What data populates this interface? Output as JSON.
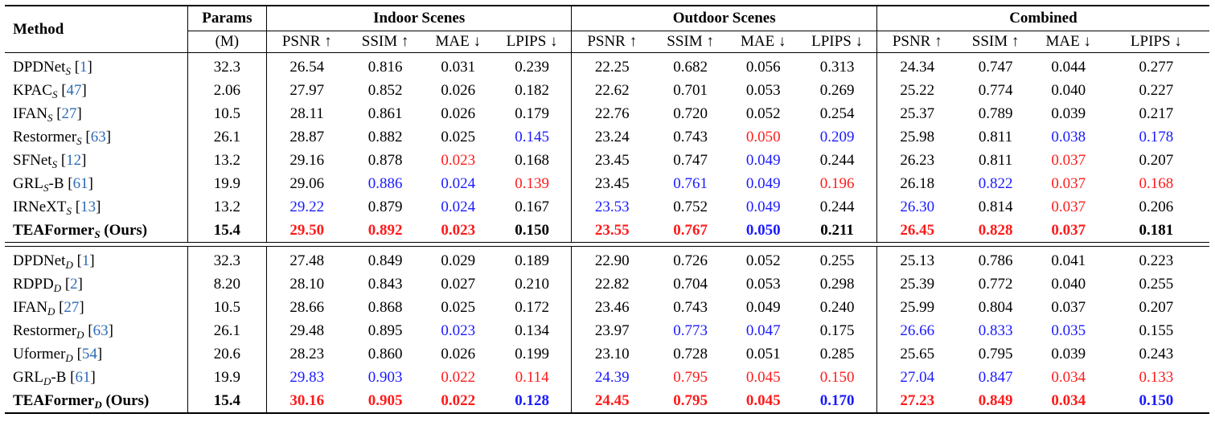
{
  "headers": {
    "method": "Method",
    "params": "Params",
    "params_unit": "(M)",
    "groups": [
      "Indoor Scenes",
      "Outdoor Scenes",
      "Combined"
    ],
    "metrics": [
      "PSNR ↑",
      "SSIM ↑",
      "MAE ↓",
      "LPIPS ↓"
    ]
  },
  "colors": {
    "best": "#ff1a1a",
    "second": "#1a1aff",
    "ref": "#2e6bb6"
  },
  "blocks": [
    [
      {
        "name": "DPDNet",
        "sub": "S",
        "suffix": "",
        "ref": "1",
        "ours": false,
        "params": "32.3",
        "values": [
          "26.54",
          "0.816",
          "0.031",
          "0.239",
          "22.25",
          "0.682",
          "0.056",
          "0.313",
          "24.34",
          "0.747",
          "0.044",
          "0.277"
        ],
        "marks": [
          "",
          "",
          "",
          "",
          "",
          "",
          "",
          "",
          "",
          "",
          "",
          ""
        ]
      },
      {
        "name": "KPAC",
        "sub": "S",
        "suffix": "",
        "ref": "47",
        "ours": false,
        "params": "2.06",
        "values": [
          "27.97",
          "0.852",
          "0.026",
          "0.182",
          "22.62",
          "0.701",
          "0.053",
          "0.269",
          "25.22",
          "0.774",
          "0.040",
          "0.227"
        ],
        "marks": [
          "",
          "",
          "",
          "",
          "",
          "",
          "",
          "",
          "",
          "",
          "",
          ""
        ]
      },
      {
        "name": "IFAN",
        "sub": "S",
        "suffix": "",
        "ref": "27",
        "ours": false,
        "params": "10.5",
        "values": [
          "28.11",
          "0.861",
          "0.026",
          "0.179",
          "22.76",
          "0.720",
          "0.052",
          "0.254",
          "25.37",
          "0.789",
          "0.039",
          "0.217"
        ],
        "marks": [
          "",
          "",
          "",
          "",
          "",
          "",
          "",
          "",
          "",
          "",
          "",
          ""
        ]
      },
      {
        "name": "Restormer",
        "sub": "S",
        "suffix": "",
        "ref": "63",
        "ours": false,
        "params": "26.1",
        "values": [
          "28.87",
          "0.882",
          "0.025",
          "0.145",
          "23.24",
          "0.743",
          "0.050",
          "0.209",
          "25.98",
          "0.811",
          "0.038",
          "0.178"
        ],
        "marks": [
          "",
          "",
          "",
          "blue",
          "",
          "",
          "red",
          "blue",
          "",
          "",
          "blue",
          "blue"
        ]
      },
      {
        "name": "SFNet",
        "sub": "S",
        "suffix": "",
        "ref": "12",
        "ours": false,
        "params": "13.2",
        "values": [
          "29.16",
          "0.878",
          "0.023",
          "0.168",
          "23.45",
          "0.747",
          "0.049",
          "0.244",
          "26.23",
          "0.811",
          "0.037",
          "0.207"
        ],
        "marks": [
          "",
          "",
          "red",
          "",
          "",
          "",
          "blue",
          "",
          "",
          "",
          "red",
          ""
        ]
      },
      {
        "name": "GRL",
        "sub": "S",
        "suffix": "-B",
        "ref": "61",
        "ours": false,
        "params": "19.9",
        "values": [
          "29.06",
          "0.886",
          "0.024",
          "0.139",
          "23.45",
          "0.761",
          "0.049",
          "0.196",
          "26.18",
          "0.822",
          "0.037",
          "0.168"
        ],
        "marks": [
          "",
          "blue",
          "blue",
          "red",
          "",
          "blue",
          "blue",
          "red",
          "",
          "blue",
          "red",
          "red"
        ]
      },
      {
        "name": "IRNeXT",
        "sub": "S",
        "suffix": "",
        "ref": "13",
        "ours": false,
        "params": "13.2",
        "values": [
          "29.22",
          "0.879",
          "0.024",
          "0.167",
          "23.53",
          "0.752",
          "0.049",
          "0.244",
          "26.30",
          "0.814",
          "0.037",
          "0.206"
        ],
        "marks": [
          "blue",
          "",
          "blue",
          "",
          "blue",
          "",
          "blue",
          "",
          "blue",
          "",
          "red",
          ""
        ]
      },
      {
        "name": "TEAFormer",
        "sub": "S",
        "suffix": " (Ours)",
        "ref": "",
        "ours": true,
        "params": "15.4",
        "values": [
          "29.50",
          "0.892",
          "0.023",
          "0.150",
          "23.55",
          "0.767",
          "0.050",
          "0.211",
          "26.45",
          "0.828",
          "0.037",
          "0.181"
        ],
        "marks": [
          "red",
          "red",
          "red",
          "",
          "red",
          "red",
          "blue",
          "",
          "red",
          "red",
          "red",
          ""
        ]
      }
    ],
    [
      {
        "name": "DPDNet",
        "sub": "D",
        "suffix": "",
        "ref": "1",
        "ours": false,
        "params": "32.3",
        "values": [
          "27.48",
          "0.849",
          "0.029",
          "0.189",
          "22.90",
          "0.726",
          "0.052",
          "0.255",
          "25.13",
          "0.786",
          "0.041",
          "0.223"
        ],
        "marks": [
          "",
          "",
          "",
          "",
          "",
          "",
          "",
          "",
          "",
          "",
          "",
          ""
        ]
      },
      {
        "name": "RDPD",
        "sub": "D",
        "suffix": "",
        "ref": "2",
        "ours": false,
        "params": "8.20",
        "values": [
          "28.10",
          "0.843",
          "0.027",
          "0.210",
          "22.82",
          "0.704",
          "0.053",
          "0.298",
          "25.39",
          "0.772",
          "0.040",
          "0.255"
        ],
        "marks": [
          "",
          "",
          "",
          "",
          "",
          "",
          "",
          "",
          "",
          "",
          "",
          ""
        ]
      },
      {
        "name": "IFAN",
        "sub": "D",
        "suffix": "",
        "ref": "27",
        "ours": false,
        "params": "10.5",
        "values": [
          "28.66",
          "0.868",
          "0.025",
          "0.172",
          "23.46",
          "0.743",
          "0.049",
          "0.240",
          "25.99",
          "0.804",
          "0.037",
          "0.207"
        ],
        "marks": [
          "",
          "",
          "",
          "",
          "",
          "",
          "",
          "",
          "",
          "",
          "",
          ""
        ]
      },
      {
        "name": "Restormer",
        "sub": "D",
        "suffix": "",
        "ref": "63",
        "ours": false,
        "params": "26.1",
        "values": [
          "29.48",
          "0.895",
          "0.023",
          "0.134",
          "23.97",
          "0.773",
          "0.047",
          "0.175",
          "26.66",
          "0.833",
          "0.035",
          "0.155"
        ],
        "marks": [
          "",
          "",
          "blue",
          "",
          "",
          "blue",
          "blue",
          "",
          "blue",
          "blue",
          "blue",
          ""
        ]
      },
      {
        "name": "Uformer",
        "sub": "D",
        "suffix": "",
        "ref": "54",
        "ours": false,
        "params": "20.6",
        "values": [
          "28.23",
          "0.860",
          "0.026",
          "0.199",
          "23.10",
          "0.728",
          "0.051",
          "0.285",
          "25.65",
          "0.795",
          "0.039",
          "0.243"
        ],
        "marks": [
          "",
          "",
          "",
          "",
          "",
          "",
          "",
          "",
          "",
          "",
          "",
          ""
        ]
      },
      {
        "name": "GRL",
        "sub": "D",
        "suffix": "-B",
        "ref": "61",
        "ours": false,
        "params": "19.9",
        "values": [
          "29.83",
          "0.903",
          "0.022",
          "0.114",
          "24.39",
          "0.795",
          "0.045",
          "0.150",
          "27.04",
          "0.847",
          "0.034",
          "0.133"
        ],
        "marks": [
          "blue",
          "blue",
          "red",
          "red",
          "blue",
          "red",
          "red",
          "red",
          "blue",
          "blue",
          "red",
          "red"
        ]
      },
      {
        "name": "TEAFormer",
        "sub": "D",
        "suffix": " (Ours)",
        "ref": "",
        "ours": true,
        "params": "15.4",
        "values": [
          "30.16",
          "0.905",
          "0.022",
          "0.128",
          "24.45",
          "0.795",
          "0.045",
          "0.170",
          "27.23",
          "0.849",
          "0.034",
          "0.150"
        ],
        "marks": [
          "red",
          "red",
          "red",
          "blue",
          "red",
          "red",
          "red",
          "blue",
          "red",
          "red",
          "red",
          "blue"
        ]
      }
    ]
  ]
}
